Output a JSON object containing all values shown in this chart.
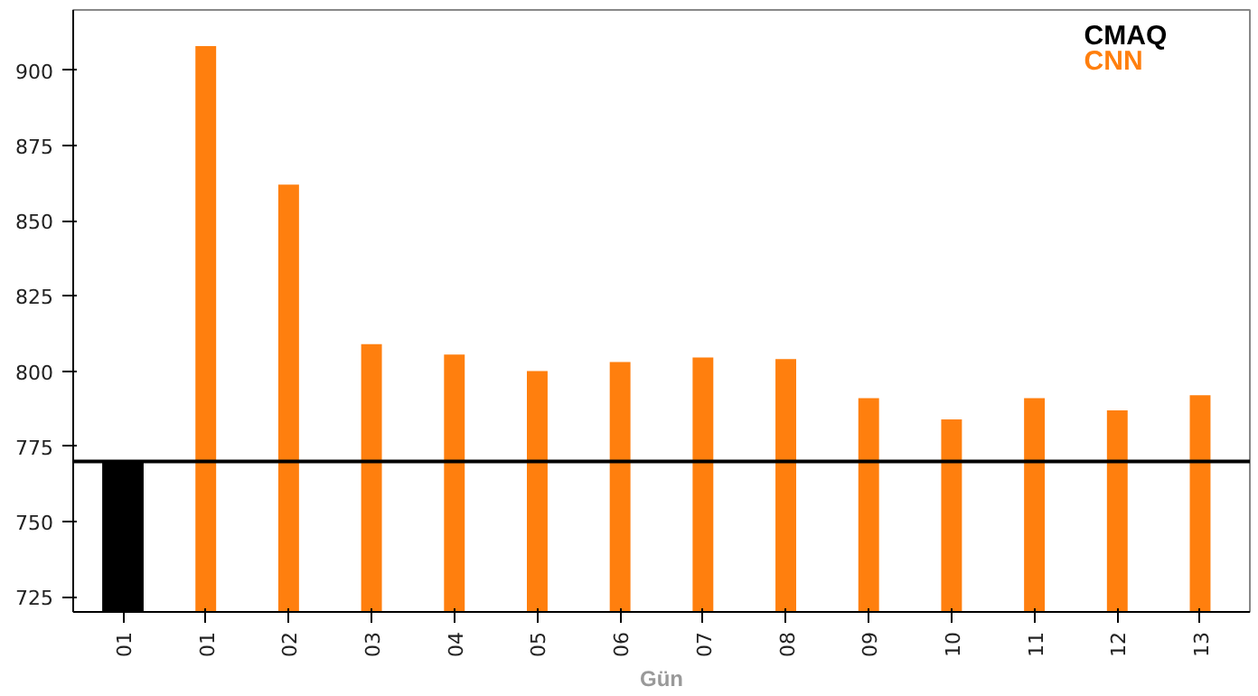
{
  "chart_data": {
    "type": "bar",
    "xlabel": "Gün",
    "categories": [
      "01",
      "01",
      "02",
      "03",
      "04",
      "05",
      "06",
      "07",
      "08",
      "09",
      "10",
      "11",
      "12",
      "13"
    ],
    "series": [
      {
        "name": "CMAQ",
        "color": "#000000",
        "values": [
          770,
          null,
          null,
          null,
          null,
          null,
          null,
          null,
          null,
          null,
          null,
          null,
          null,
          null
        ]
      },
      {
        "name": "CNN",
        "color": "#ff7f0e",
        "values": [
          null,
          908,
          862,
          809,
          805.5,
          800,
          803,
          804.5,
          804,
          791,
          784,
          791,
          787,
          792
        ]
      }
    ],
    "ylim": [
      720,
      920
    ],
    "yticks": [
      725,
      750,
      775,
      800,
      825,
      850,
      875,
      900
    ],
    "ref_lines": [
      {
        "axis": "y",
        "value": 770,
        "color": "#000000"
      }
    ],
    "grid": false,
    "legend": "top right"
  }
}
